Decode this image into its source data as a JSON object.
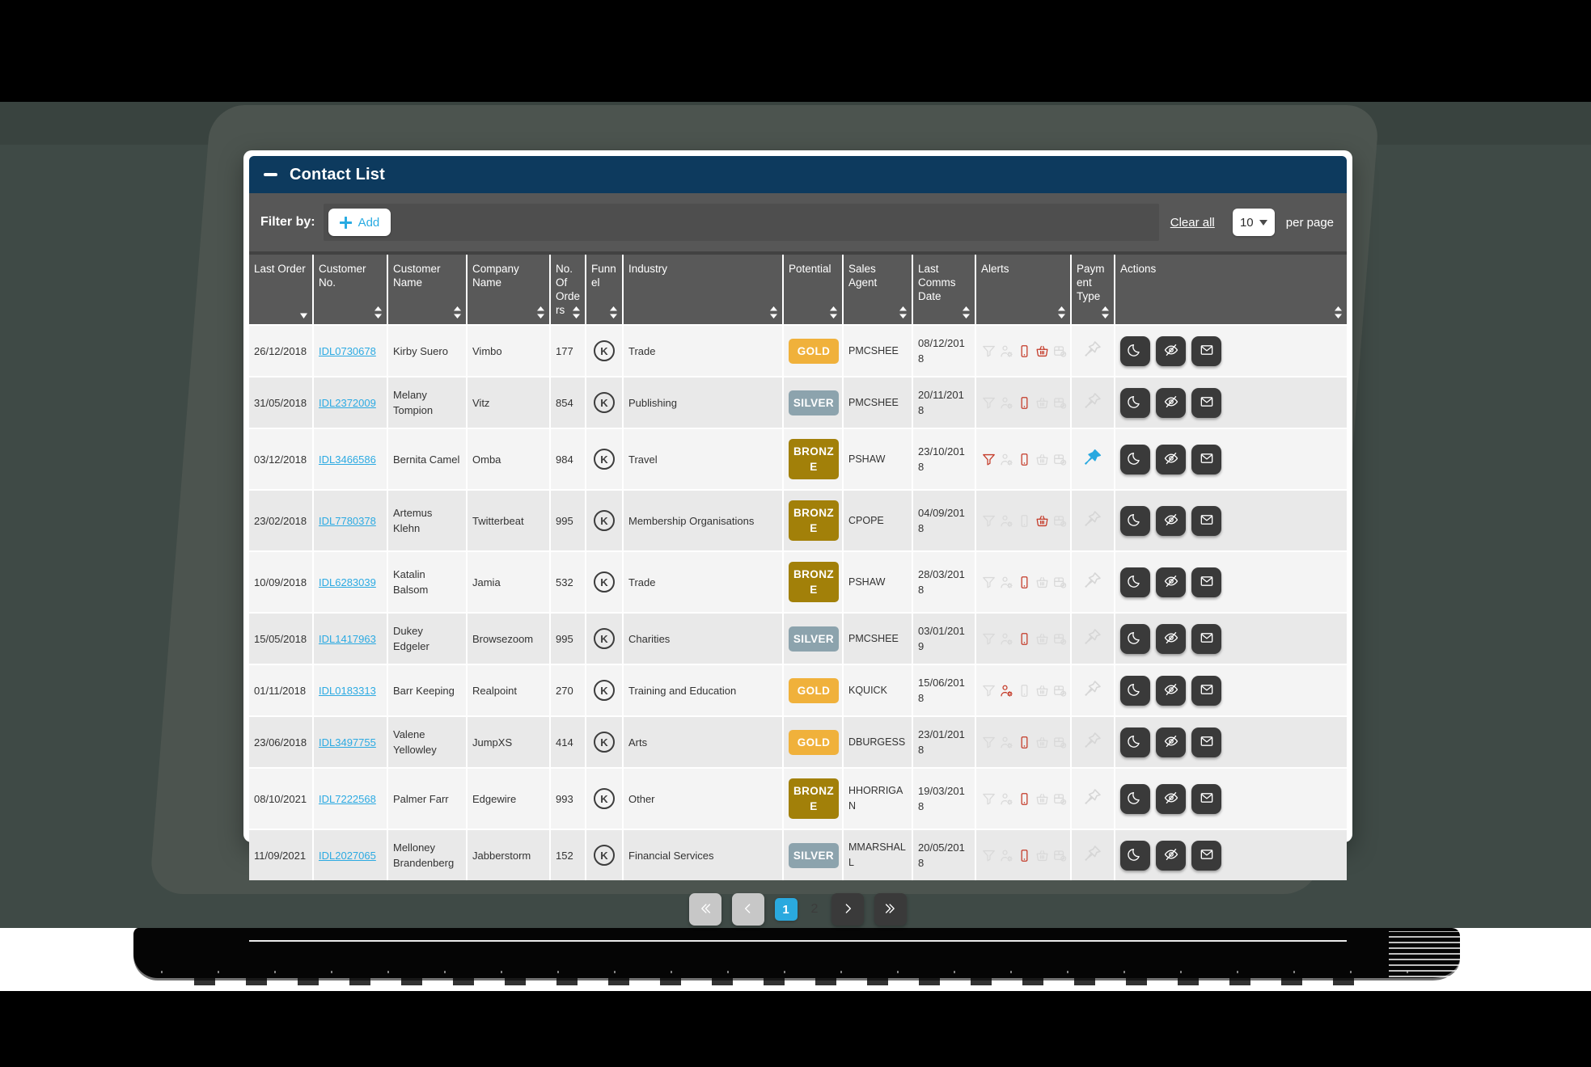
{
  "header": {
    "title": "Contact List"
  },
  "filter": {
    "label": "Filter by:",
    "add_label": "Add",
    "clear_all": "Clear all",
    "per_page_value": "10",
    "per_page_label": "per page"
  },
  "columns": [
    {
      "label": "Last Order",
      "sort": "desc"
    },
    {
      "label": "Customer No.",
      "sort": "both"
    },
    {
      "label": "Customer Name",
      "sort": "both"
    },
    {
      "label": "Company Name",
      "sort": "both"
    },
    {
      "label": "No. Of Orders",
      "sort": "both"
    },
    {
      "label": "Funnel",
      "sort": "both"
    },
    {
      "label": "Industry",
      "sort": "both"
    },
    {
      "label": "Potential",
      "sort": "both"
    },
    {
      "label": "Sales Agent",
      "sort": "both"
    },
    {
      "label": "Last Comms Date",
      "sort": "both"
    },
    {
      "label": "Alerts",
      "sort": "both"
    },
    {
      "label": "Payment Type",
      "sort": "both"
    },
    {
      "label": "Actions",
      "sort": "both"
    }
  ],
  "alert_icon_names": [
    "filter-alert-icon",
    "customer-settings-alert-icon",
    "phone-alert-icon",
    "basket-alert-icon",
    "delivery-alert-icon"
  ],
  "action_icon_names": [
    "snooze-moon-icon",
    "hide-eye-off-icon",
    "email-envelope-icon"
  ],
  "funnel_mark": "K",
  "rows": [
    {
      "last_order": "26/12/2018",
      "customer_no": "IDL0730678",
      "customer_name": "Kirby Suero",
      "company": "Vimbo",
      "orders": "177",
      "industry": "Trade",
      "potential": "GOLD",
      "agent": "PMCSHEE",
      "last_comms": "08/12/2018",
      "alerts": [
        0,
        0,
        1,
        1,
        0
      ],
      "pinned": false
    },
    {
      "last_order": "31/05/2018",
      "customer_no": "IDL2372009",
      "customer_name": "Melany Tompion",
      "company": "Vitz",
      "orders": "854",
      "industry": "Publishing",
      "potential": "SILVER",
      "agent": "PMCSHEE",
      "last_comms": "20/11/2018",
      "alerts": [
        0,
        0,
        1,
        0,
        0
      ],
      "pinned": false
    },
    {
      "last_order": "03/12/2018",
      "customer_no": "IDL3466586",
      "customer_name": "Bernita Camel",
      "company": "Omba",
      "orders": "984",
      "industry": "Travel",
      "potential": "BRONZE",
      "agent": "PSHAW",
      "last_comms": "23/10/2018",
      "alerts": [
        1,
        0,
        1,
        0,
        0
      ],
      "pinned": true
    },
    {
      "last_order": "23/02/2018",
      "customer_no": "IDL7780378",
      "customer_name": "Artemus Klehn",
      "company": "Twitterbeat",
      "orders": "995",
      "industry": "Membership Organisations",
      "potential": "BRONZE",
      "agent": "CPOPE",
      "last_comms": "04/09/2018",
      "alerts": [
        0,
        0,
        0,
        1,
        0
      ],
      "pinned": false
    },
    {
      "last_order": "10/09/2018",
      "customer_no": "IDL6283039",
      "customer_name": "Katalin Balsom",
      "company": "Jamia",
      "orders": "532",
      "industry": "Trade",
      "potential": "BRONZE",
      "agent": "PSHAW",
      "last_comms": "28/03/2018",
      "alerts": [
        0,
        0,
        1,
        0,
        0
      ],
      "pinned": false
    },
    {
      "last_order": "15/05/2018",
      "customer_no": "IDL1417963",
      "customer_name": "Dukey Edgeler",
      "company": "Browsezoom",
      "orders": "995",
      "industry": "Charities",
      "potential": "SILVER",
      "agent": "PMCSHEE",
      "last_comms": "03/01/2019",
      "alerts": [
        0,
        0,
        1,
        0,
        0
      ],
      "pinned": false
    },
    {
      "last_order": "01/11/2018",
      "customer_no": "IDL0183313",
      "customer_name": "Barr Keeping",
      "company": "Realpoint",
      "orders": "270",
      "industry": "Training and Education",
      "potential": "GOLD",
      "agent": "KQUICK",
      "last_comms": "15/06/2018",
      "alerts": [
        0,
        1,
        0,
        0,
        0
      ],
      "pinned": false
    },
    {
      "last_order": "23/06/2018",
      "customer_no": "IDL3497755",
      "customer_name": "Valene Yellowley",
      "company": "JumpXS",
      "orders": "414",
      "industry": "Arts",
      "potential": "GOLD",
      "agent": "DBURGESS",
      "last_comms": "23/01/2018",
      "alerts": [
        0,
        0,
        1,
        0,
        0
      ],
      "pinned": false
    },
    {
      "last_order": "08/10/2021",
      "customer_no": "IDL7222568",
      "customer_name": "Palmer Farr",
      "company": "Edgewire",
      "orders": "993",
      "industry": "Other",
      "potential": "BRONZE",
      "agent": "HHORRIGAN",
      "last_comms": "19/03/2018",
      "alerts": [
        0,
        0,
        1,
        0,
        0
      ],
      "pinned": false
    },
    {
      "last_order": "11/09/2021",
      "customer_no": "IDL2027065",
      "customer_name": "Melloney Brandenberg",
      "company": "Jabberstorm",
      "orders": "152",
      "industry": "Financial Services",
      "potential": "SILVER",
      "agent": "MMARSHALL",
      "last_comms": "20/05/2018",
      "alerts": [
        0,
        0,
        1,
        0,
        0
      ],
      "pinned": false
    }
  ],
  "pagination": {
    "pages": [
      "1",
      "2"
    ],
    "current": "1"
  },
  "colors": {
    "accent_cyan": "#29a9df",
    "navy_header": "#0d3a5e",
    "gold": "#f0b13b",
    "silver": "#8ca3ad",
    "bronze": "#a28009",
    "alert_red": "#c43a28",
    "alert_idle": "#d9d9d9",
    "pin_active": "#29a9e0"
  }
}
